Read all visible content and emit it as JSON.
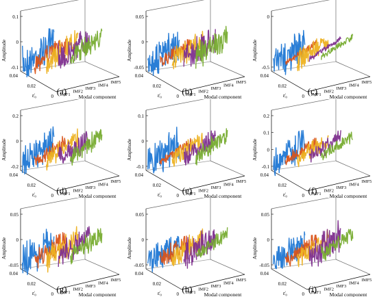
{
  "chart_data": {
    "type": "3d-line",
    "ylabel": "Amplitude",
    "xlabel": "Modal component",
    "depth_label": "ε̇₀",
    "categories": [
      "IMF1",
      "IMF2",
      "IMF3",
      "IMF4",
      "IMF5"
    ],
    "depth_ticks": [
      "0.04",
      "0.02",
      "0"
    ],
    "colors": [
      "#1f77d4",
      "#d9541a",
      "#edb120",
      "#7e2f8e",
      "#77ac30"
    ],
    "panels": [
      {
        "label": "(a)",
        "zticks": [
          "0.1",
          "0",
          "-0.1"
        ],
        "amplitudes": [
          0.1,
          0.06,
          0.08,
          0.09,
          0.06
        ]
      },
      {
        "label": "(b)",
        "zticks": [
          "0.05",
          "0",
          "-0.05"
        ],
        "amplitudes": [
          0.05,
          0.02,
          0.035,
          0.045,
          0.035
        ]
      },
      {
        "label": "(c)",
        "zticks": [
          "0",
          "-0.5"
        ],
        "amplitudes": [
          0.5,
          0.1,
          0.3,
          0.08,
          0.1
        ]
      },
      {
        "label": "(d)",
        "zticks": [
          "0.2",
          "0",
          "-0.2"
        ],
        "amplitudes": [
          0.2,
          0.08,
          0.12,
          0.14,
          0.12
        ]
      },
      {
        "label": "(e)",
        "zticks": [
          "0.1",
          "0",
          "-0.1"
        ],
        "amplitudes": [
          0.1,
          0.03,
          0.06,
          0.06,
          0.05
        ]
      },
      {
        "label": "(f)",
        "zticks": [
          "0.2",
          "0.1",
          "0",
          "-0.1"
        ],
        "amplitudes": [
          0.15,
          0.06,
          0.08,
          0.07,
          0.05
        ]
      },
      {
        "label": "(g)",
        "zticks": [
          "0.05",
          "0",
          "-0.05"
        ],
        "amplitudes": [
          0.05,
          0.03,
          0.04,
          0.04,
          0.03
        ]
      },
      {
        "label": "(h)",
        "zticks": [
          "0.05",
          "0",
          "-0.05"
        ],
        "amplitudes": [
          0.06,
          0.04,
          0.05,
          0.07,
          0.03
        ]
      },
      {
        "label": "(i)",
        "zticks": [
          "0.05",
          "0",
          "-0.05"
        ],
        "amplitudes": [
          0.05,
          0.03,
          0.035,
          0.06,
          0.03
        ]
      }
    ]
  }
}
